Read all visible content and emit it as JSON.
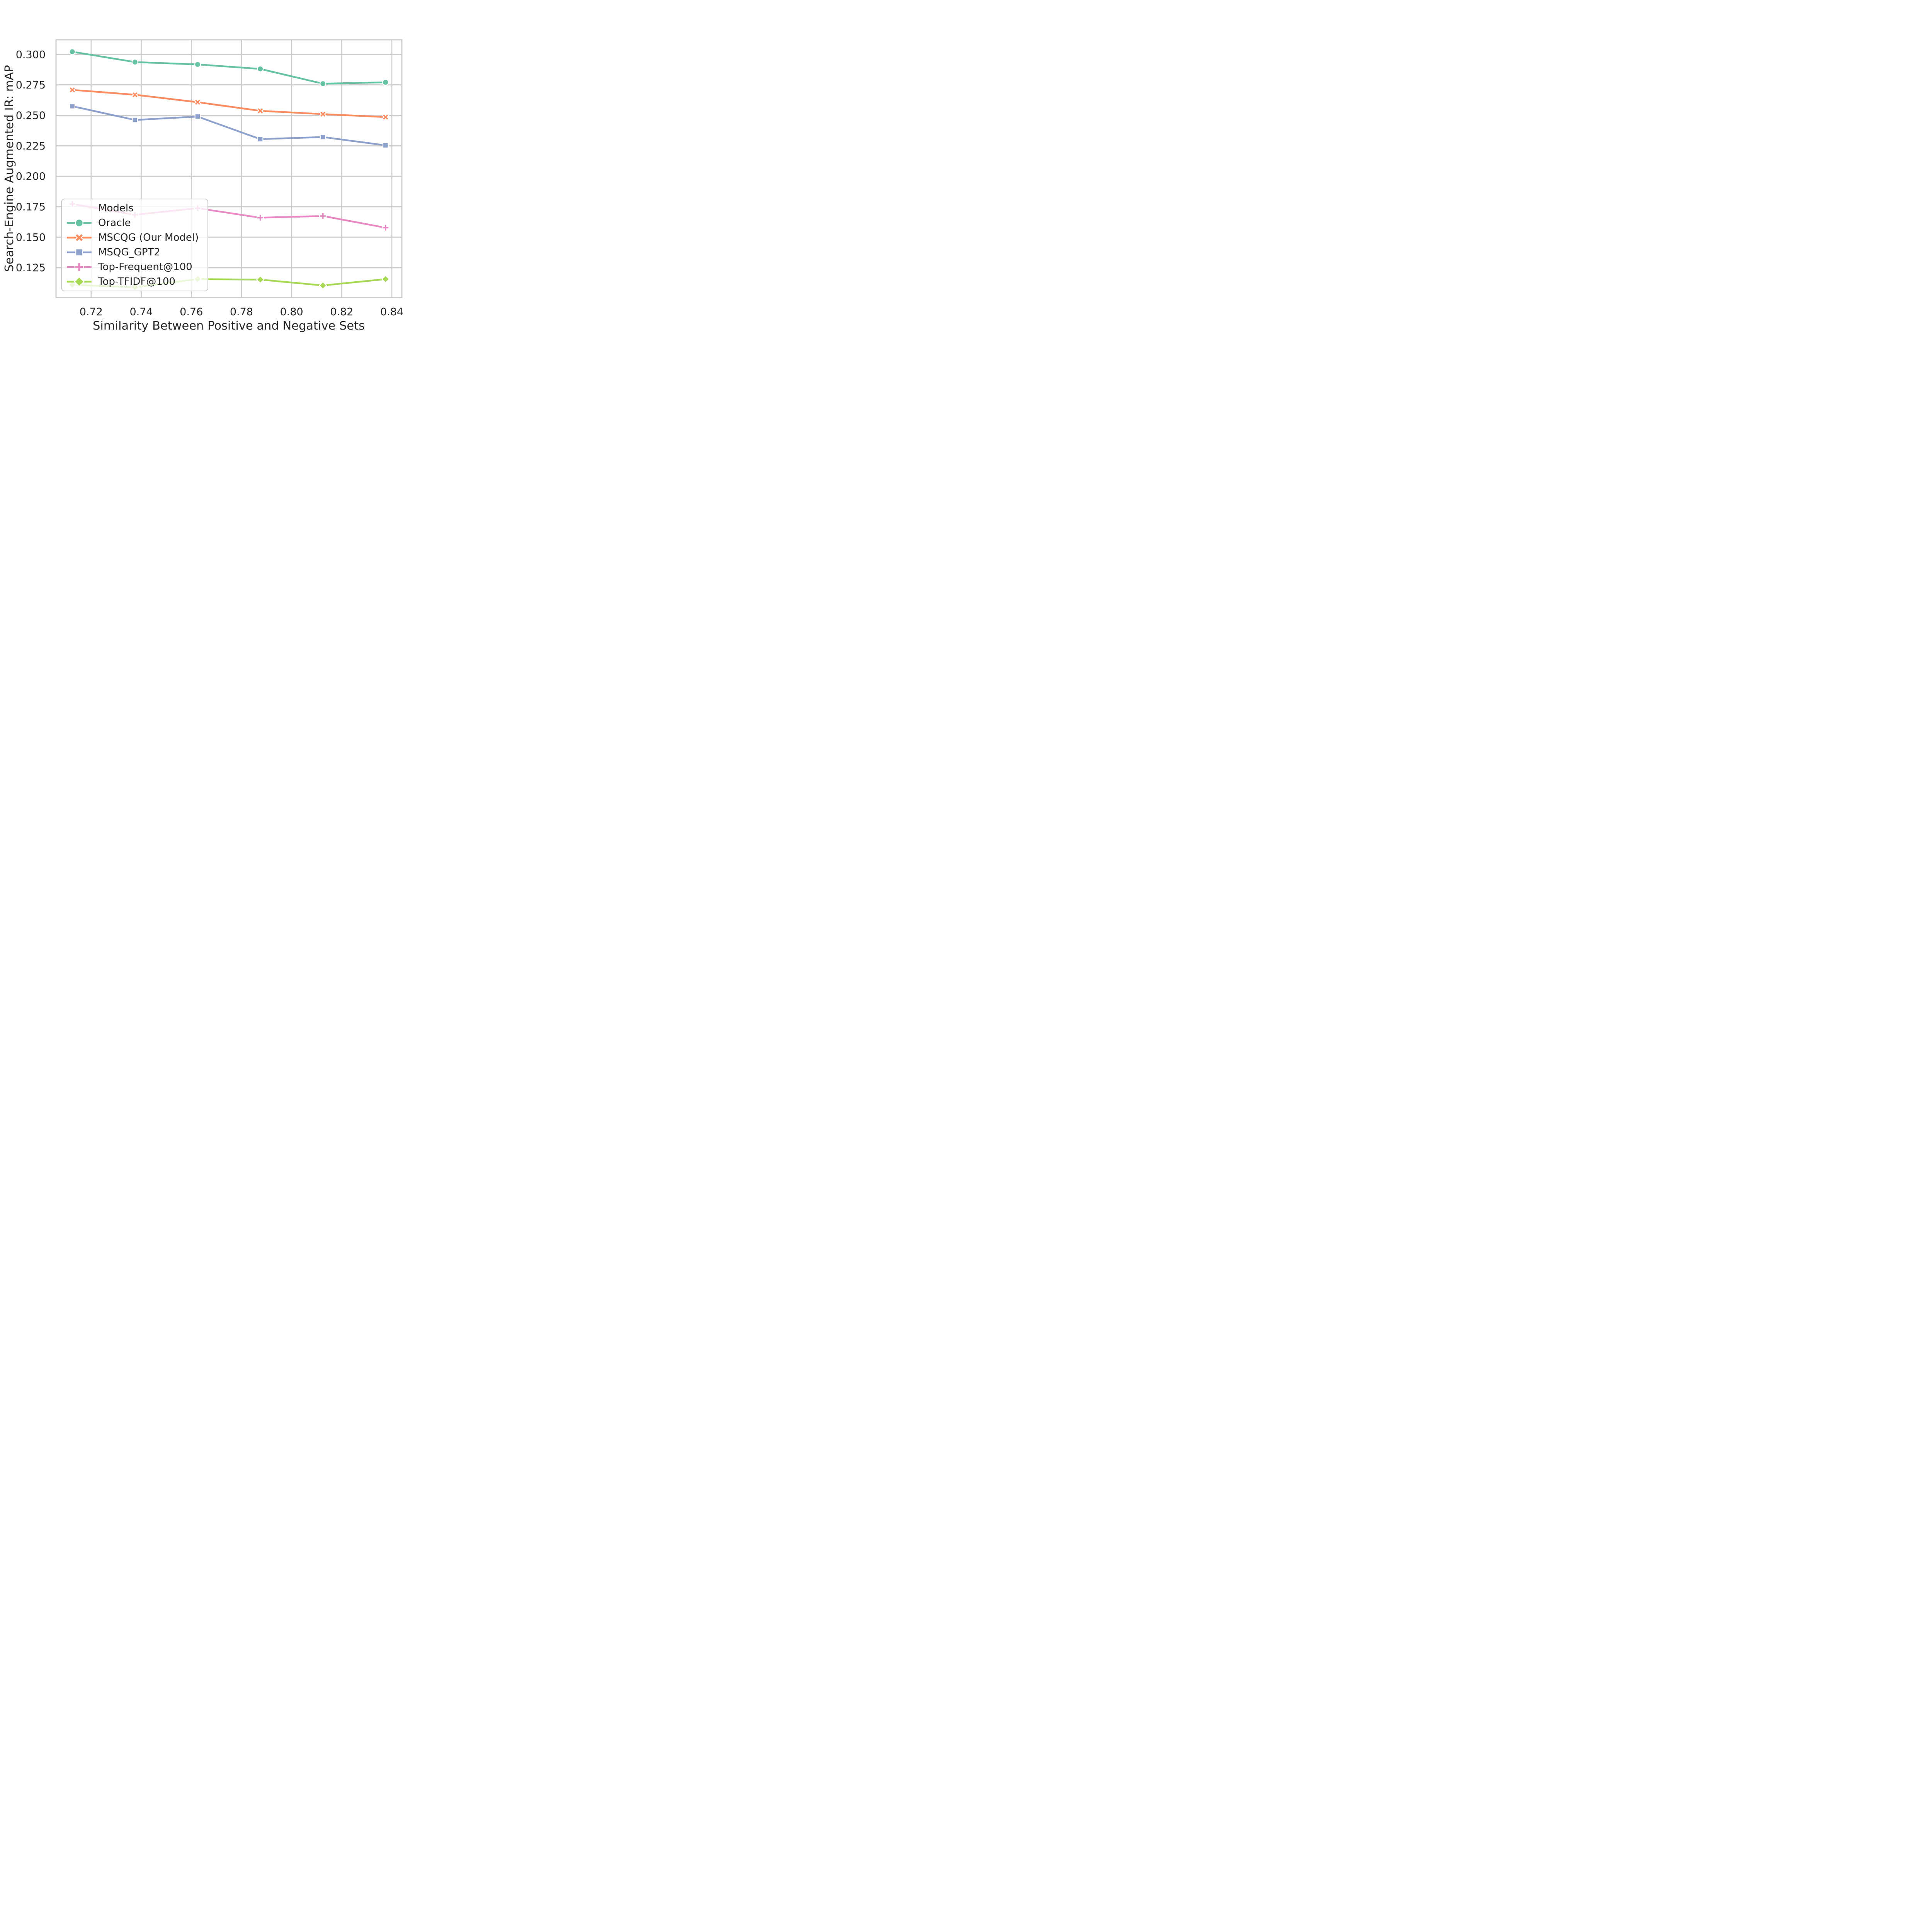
{
  "chart_data": {
    "type": "line",
    "xlabel": "Similarity Between Positive and Negative Sets",
    "ylabel": "Search-Engine Augmented IR: mAP",
    "legend_title": "Models",
    "legend_position": "lower-left",
    "grid": true,
    "background_color": "#ffffff",
    "grid_color": "#cccccc",
    "text_color": "#262626",
    "x": [
      0.7125,
      0.7375,
      0.7625,
      0.7875,
      0.8125,
      0.8375
    ],
    "xlim": [
      0.706,
      0.844
    ],
    "ylim": [
      0.1005,
      0.312
    ],
    "x_ticks": [
      0.72,
      0.74,
      0.76,
      0.78,
      0.8,
      0.82,
      0.84
    ],
    "x_tick_labels": [
      "0.72",
      "0.74",
      "0.76",
      "0.78",
      "0.80",
      "0.82",
      "0.84"
    ],
    "y_ticks": [
      0.125,
      0.15,
      0.175,
      0.2,
      0.225,
      0.25,
      0.275,
      0.3
    ],
    "y_tick_labels": [
      "0.125",
      "0.150",
      "0.175",
      "0.200",
      "0.225",
      "0.250",
      "0.275",
      "0.300"
    ],
    "series": [
      {
        "name": "Oracle",
        "color": "#66c2a5",
        "marker": "circle",
        "values": [
          0.3022,
          0.2937,
          0.2918,
          0.2881,
          0.276,
          0.2771
        ]
      },
      {
        "name": "MSCQG (Our Model)",
        "color": "#fc8d62",
        "marker": "x",
        "values": [
          0.2709,
          0.2669,
          0.2608,
          0.2537,
          0.251,
          0.2486
        ]
      },
      {
        "name": "MSQG_GPT2",
        "color": "#8da0cb",
        "marker": "square",
        "values": [
          0.2575,
          0.2462,
          0.249,
          0.2305,
          0.2322,
          0.2254
        ]
      },
      {
        "name": "Top-Frequent@100",
        "color": "#e78ac3",
        "marker": "plus",
        "values": [
          0.1773,
          0.1684,
          0.1738,
          0.166,
          0.1674,
          0.1578
        ]
      },
      {
        "name": "Top-TFIDF@100",
        "color": "#a6d854",
        "marker": "diamond",
        "values": [
          0.1109,
          0.1089,
          0.1156,
          0.1152,
          0.1104,
          0.1156
        ]
      }
    ]
  }
}
